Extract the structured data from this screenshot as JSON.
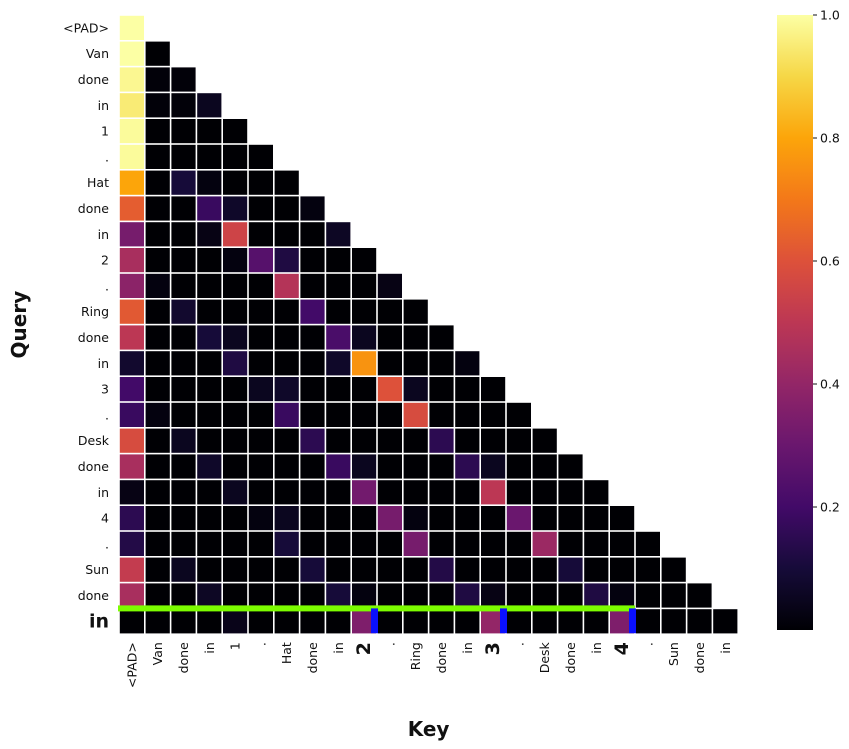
{
  "chart_data": {
    "type": "heatmap",
    "title": "",
    "xlabel": "Key",
    "ylabel": "Query",
    "mask": "upper-triangle",
    "colormap": "inferno",
    "vmin": 0,
    "vmax": 1,
    "colorbar_ticks": [
      "0.2",
      "0.4",
      "0.6",
      "0.8",
      "1.0"
    ],
    "colorbar_tick_values": [
      0.2,
      0.4,
      0.6,
      0.8,
      1.0
    ],
    "x_tick_labels": [
      "<PAD>",
      "Van",
      "done",
      "in",
      "1",
      ".",
      "Hat",
      "done",
      "in",
      "2",
      ".",
      "Ring",
      "done",
      "in",
      "3",
      ".",
      "Desk",
      "done",
      "in",
      "4",
      ".",
      "Sun",
      "done",
      "in"
    ],
    "y_tick_labels": [
      "<PAD>",
      "Van",
      "done",
      "in",
      "1",
      ".",
      "Hat",
      "done",
      "in",
      "2",
      ".",
      "Ring",
      "done",
      "in",
      "3",
      ".",
      "Desk",
      "done",
      "in",
      "4",
      ".",
      "Sun",
      "done",
      "in"
    ],
    "highlighted_x_ticks": [
      9,
      14,
      19
    ],
    "highlighted_x_color": "#0a10ff",
    "highlighted_y_ticks": [
      23
    ],
    "highlighted_y_color": "#0a7a0a",
    "highlight_row": 23,
    "highlight_row_color": "#7cfc00",
    "highlight_row_marker_cols": [
      9,
      14,
      19
    ],
    "highlight_marker_color": "#0a10ff",
    "values": [
      [
        1.0
      ],
      [
        1.0,
        0.0
      ],
      [
        0.98,
        0.01,
        0.01
      ],
      [
        0.95,
        0.01,
        0.01,
        0.05
      ],
      [
        0.99,
        0.0,
        0.0,
        0.0,
        0.0
      ],
      [
        0.99,
        0.0,
        0.0,
        0.0,
        0.0,
        0.0
      ],
      [
        0.8,
        0.0,
        0.1,
        0.02,
        0.0,
        0.0,
        0.0
      ],
      [
        0.63,
        0.0,
        0.0,
        0.18,
        0.07,
        0.0,
        0.0,
        0.02
      ],
      [
        0.33,
        0.0,
        0.0,
        0.03,
        0.55,
        0.0,
        0.0,
        0.0,
        0.06
      ],
      [
        0.45,
        0.0,
        0.0,
        0.0,
        0.02,
        0.25,
        0.12,
        0.0,
        0.0,
        0.0
      ],
      [
        0.38,
        0.02,
        0.0,
        0.0,
        0.0,
        0.0,
        0.48,
        0.0,
        0.0,
        0.0,
        0.03
      ],
      [
        0.62,
        0.0,
        0.08,
        0.0,
        0.0,
        0.0,
        0.0,
        0.2,
        0.0,
        0.0,
        0.0,
        0.0
      ],
      [
        0.5,
        0.0,
        0.0,
        0.1,
        0.05,
        0.0,
        0.0,
        0.0,
        0.22,
        0.05,
        0.0,
        0.0,
        0.0
      ],
      [
        0.08,
        0.0,
        0.0,
        0.0,
        0.12,
        0.0,
        0.0,
        0.0,
        0.07,
        0.76,
        0.0,
        0.0,
        0.0,
        0.02
      ],
      [
        0.2,
        0.0,
        0.0,
        0.0,
        0.0,
        0.05,
        0.07,
        0.0,
        0.0,
        0.0,
        0.6,
        0.05,
        0.0,
        0.0,
        0.0
      ],
      [
        0.18,
        0.02,
        0.0,
        0.0,
        0.0,
        0.0,
        0.18,
        0.0,
        0.0,
        0.0,
        0.0,
        0.58,
        0.0,
        0.0,
        0.0,
        0.0
      ],
      [
        0.58,
        0.0,
        0.05,
        0.0,
        0.0,
        0.0,
        0.0,
        0.15,
        0.0,
        0.0,
        0.0,
        0.0,
        0.15,
        0.0,
        0.0,
        0.0,
        0.0
      ],
      [
        0.45,
        0.0,
        0.0,
        0.07,
        0.0,
        0.0,
        0.0,
        0.0,
        0.18,
        0.05,
        0.0,
        0.0,
        0.0,
        0.15,
        0.05,
        0.0,
        0.0,
        0.0
      ],
      [
        0.03,
        0.0,
        0.0,
        0.0,
        0.05,
        0.0,
        0.0,
        0.0,
        0.0,
        0.32,
        0.0,
        0.0,
        0.0,
        0.0,
        0.5,
        0.0,
        0.0,
        0.0,
        0.0
      ],
      [
        0.15,
        0.0,
        0.0,
        0.0,
        0.0,
        0.02,
        0.05,
        0.0,
        0.0,
        0.0,
        0.33,
        0.02,
        0.0,
        0.0,
        0.0,
        0.3,
        0.0,
        0.0,
        0.0,
        0.0
      ],
      [
        0.13,
        0.0,
        0.0,
        0.0,
        0.0,
        0.0,
        0.1,
        0.0,
        0.0,
        0.0,
        0.0,
        0.33,
        0.0,
        0.0,
        0.0,
        0.0,
        0.42,
        0.0,
        0.0,
        0.0,
        0.0
      ],
      [
        0.52,
        0.0,
        0.05,
        0.0,
        0.0,
        0.0,
        0.0,
        0.1,
        0.0,
        0.0,
        0.0,
        0.0,
        0.13,
        0.0,
        0.0,
        0.0,
        0.0,
        0.1,
        0.0,
        0.0,
        0.0,
        0.0
      ],
      [
        0.45,
        0.0,
        0.0,
        0.06,
        0.0,
        0.0,
        0.0,
        0.0,
        0.1,
        0.02,
        0.0,
        0.0,
        0.0,
        0.12,
        0.03,
        0.0,
        0.0,
        0.0,
        0.12,
        0.02,
        0.0,
        0.0,
        0.0
      ],
      [
        0.0,
        0.0,
        0.0,
        0.0,
        0.04,
        0.0,
        0.0,
        0.0,
        0.0,
        0.35,
        0.0,
        0.0,
        0.0,
        0.0,
        0.4,
        0.0,
        0.0,
        0.0,
        0.0,
        0.35,
        0.0,
        0.0,
        0.0,
        0.0
      ]
    ]
  }
}
